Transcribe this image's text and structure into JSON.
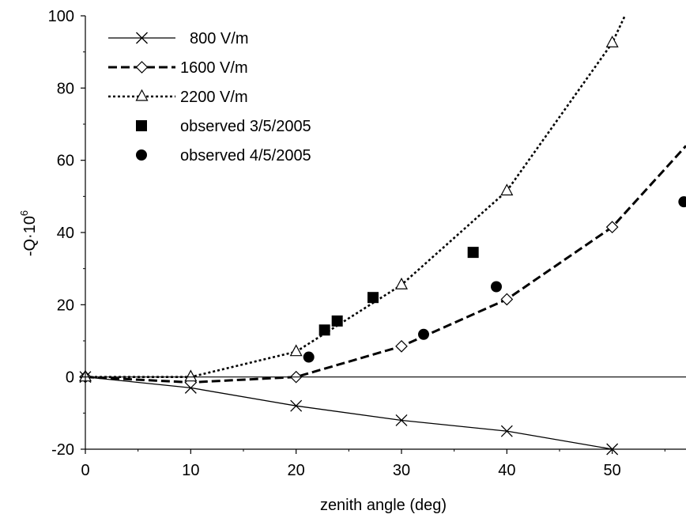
{
  "chart_data": {
    "type": "line",
    "xlabel": "zenith angle (deg)",
    "ylabel": "-Q·10",
    "ylabel_superscript": "6",
    "xlim": [
      0,
      57
    ],
    "ylim": [
      -20,
      100
    ],
    "x_ticks": [
      "0",
      "10",
      "20",
      "30",
      "40",
      "50"
    ],
    "y_ticks": [
      "-20",
      "0",
      "20",
      "40",
      "60",
      "80",
      "100"
    ],
    "grid": false,
    "legend_position": "top-left",
    "series": [
      {
        "name": "800 V/m",
        "kind": "line",
        "line_style": "solid",
        "marker": "x",
        "x": [
          0,
          10,
          20,
          30,
          40,
          50
        ],
        "y": [
          0,
          -3,
          -8,
          -12,
          -15,
          -20
        ]
      },
      {
        "name": "1600 V/m",
        "kind": "line",
        "line_style": "dashed",
        "marker": "diamond",
        "x": [
          0,
          10,
          20,
          30,
          40,
          50,
          57
        ],
        "y": [
          0,
          -1.5,
          0,
          8.5,
          21.5,
          41.5,
          64
        ]
      },
      {
        "name": "2200 V/m",
        "kind": "line",
        "line_style": "dotted",
        "marker": "triangle",
        "x": [
          0,
          10,
          20,
          30,
          40,
          50,
          51.2
        ],
        "y": [
          0,
          0,
          7,
          25.5,
          51.5,
          92.5,
          100
        ]
      },
      {
        "name": "observed 3/5/2005",
        "kind": "scatter",
        "marker": "square",
        "x": [
          22.7,
          23.9,
          27.3,
          36.8
        ],
        "y": [
          13,
          15.5,
          22,
          34.5
        ]
      },
      {
        "name": "observed 4/5/2005",
        "kind": "scatter",
        "marker": "circle",
        "x": [
          21.2,
          32.1,
          39.0,
          56.8
        ],
        "y": [
          5.5,
          11.8,
          25,
          48.5
        ]
      }
    ]
  }
}
